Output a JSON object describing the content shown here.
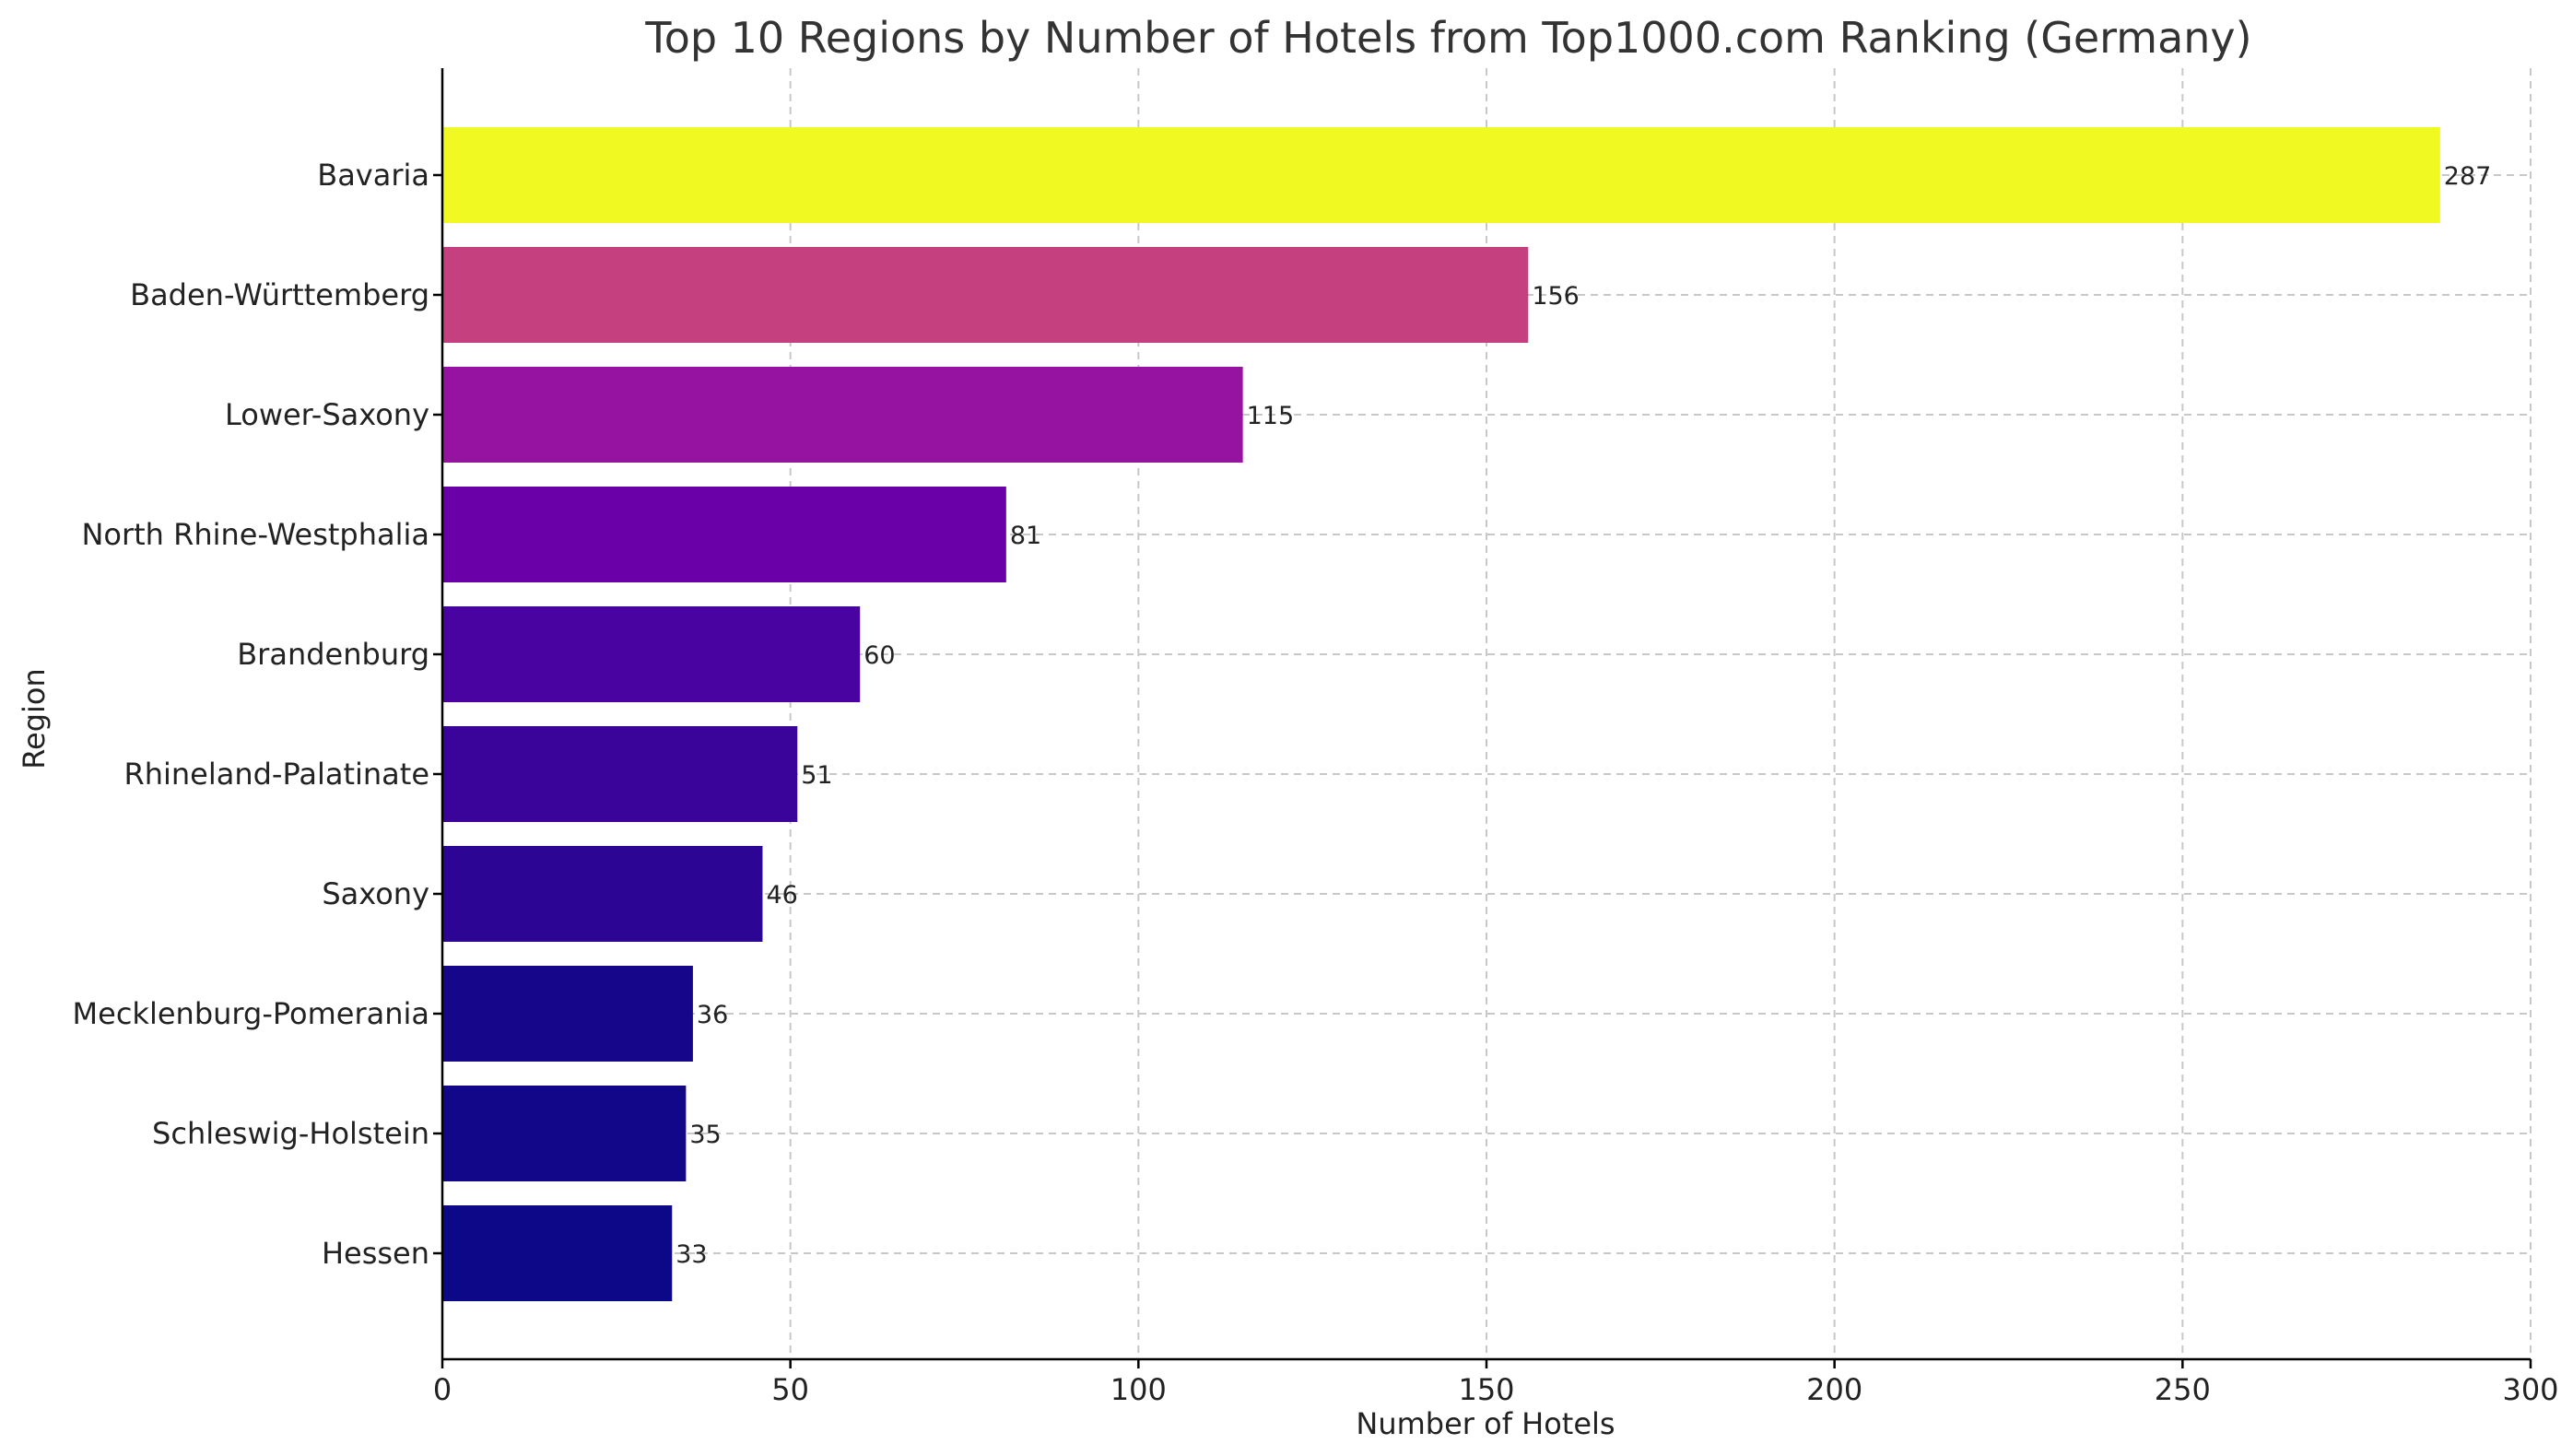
{
  "chart_data": {
    "type": "bar",
    "orientation": "horizontal",
    "title": "Top 10 Regions by Number of Hotels from Top1000.com Ranking (Germany)",
    "xlabel": "Number of Hotels",
    "ylabel": "Region",
    "xlim": [
      0,
      300
    ],
    "xticks": [
      0,
      50,
      100,
      150,
      200,
      250,
      300
    ],
    "grid": true,
    "categories": [
      "Bavaria",
      "Baden-Württemberg",
      "Lower-Saxony",
      "North Rhine-Westphalia",
      "Brandenburg",
      "Rhineland-Palatinate",
      "Saxony",
      "Mecklenburg-Pomerania",
      "Schleswig-Holstein",
      "Hessen"
    ],
    "values": [
      287,
      156,
      115,
      81,
      60,
      51,
      46,
      36,
      35,
      33
    ],
    "colors": [
      "#f0f921",
      "#c5407e",
      "#9613a1",
      "#6a00a8",
      "#4903a0",
      "#3a049a",
      "#2c0594",
      "#16078a",
      "#120789",
      "#0d0887"
    ]
  }
}
